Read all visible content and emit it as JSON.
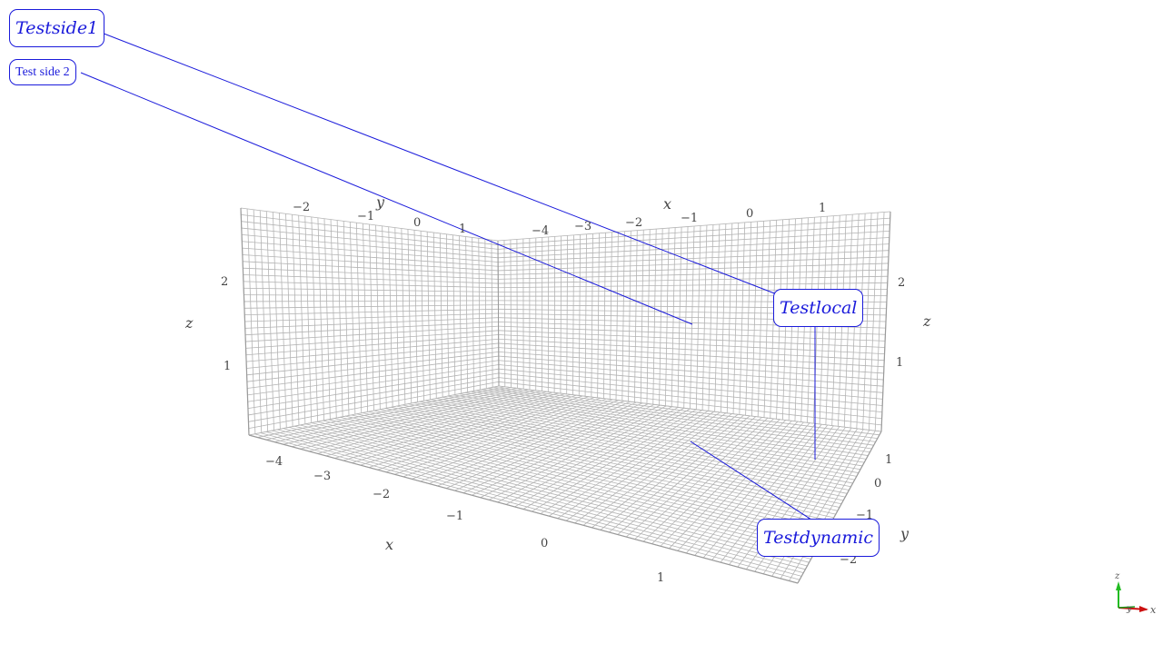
{
  "colors": {
    "grid": "#b4b4b4",
    "grid_edge": "#9a9a9a",
    "annotation": "#1a1adb",
    "tick_text": "#444444",
    "axis_x": "#cc1111",
    "axis_y": "#1a9a1a",
    "axis_z": "#22bb22"
  },
  "annotations": {
    "side1": "Testside1",
    "side2": "Test side 2",
    "local": "Testlocal",
    "dynamic": "Testdynamic"
  },
  "axes": {
    "back_left": {
      "label": "y",
      "ticks": [
        "−2",
        "−1",
        "0",
        "1"
      ]
    },
    "back_right": {
      "label": "x",
      "ticks": [
        "−4",
        "−3",
        "−2",
        "−1",
        "0",
        "1"
      ]
    },
    "left_z": {
      "label": "z",
      "ticks": [
        "2",
        "1"
      ]
    },
    "right_z": {
      "label": "z",
      "ticks": [
        "2",
        "1"
      ]
    },
    "front_x": {
      "label": "x",
      "ticks": [
        "−4",
        "−3",
        "−2",
        "−1",
        "0",
        "1"
      ]
    },
    "front_y": {
      "label": "y",
      "ticks": [
        "1",
        "0",
        "−1",
        "−2"
      ]
    }
  },
  "orientation_widget": {
    "x": "x",
    "y": "y",
    "z": "z"
  }
}
